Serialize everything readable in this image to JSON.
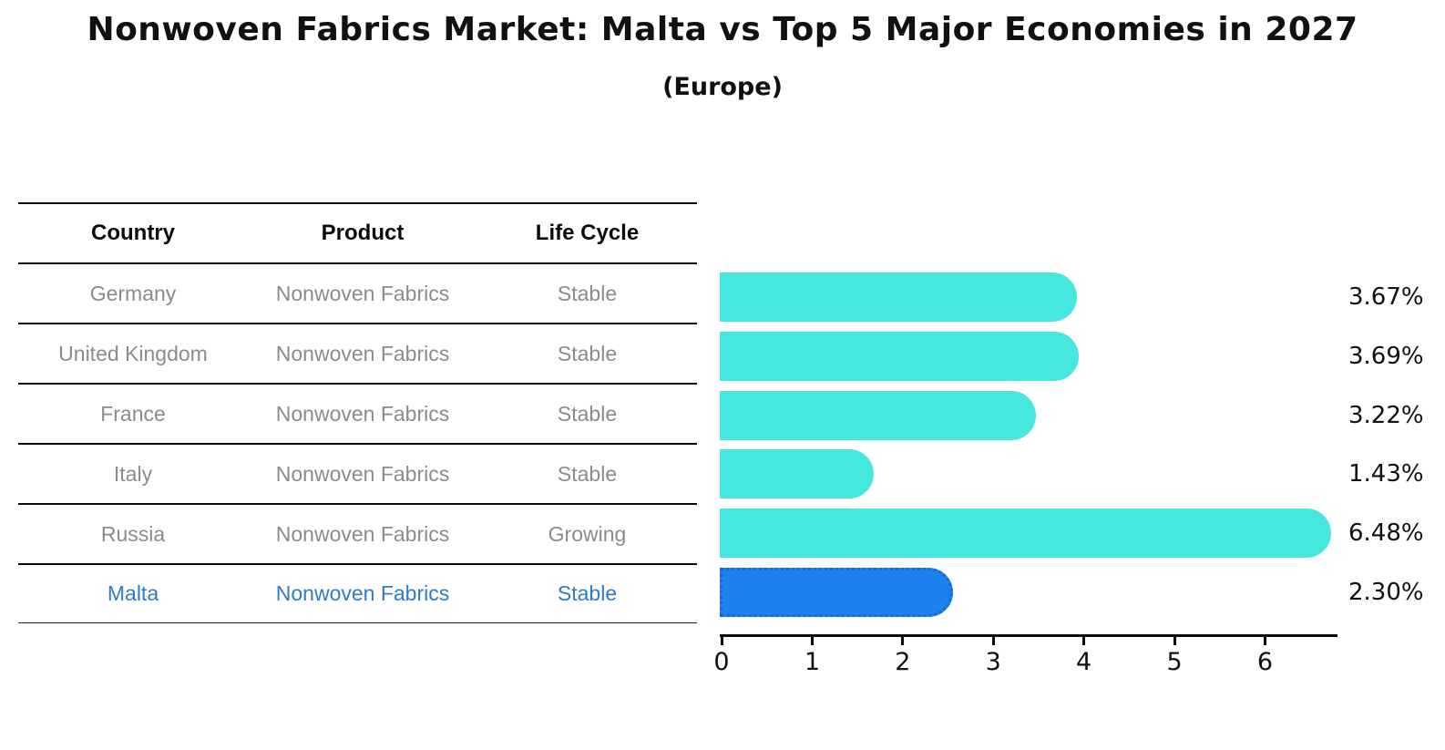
{
  "page": {
    "title": "Nonwoven Fabrics Market: Malta vs Top 5 Major Economies in 2027",
    "subtitle": "(Europe)"
  },
  "table": {
    "columns": [
      "Country",
      "Product",
      "Life Cycle"
    ],
    "rows": [
      {
        "country": "Germany",
        "product": "Nonwoven Fabrics",
        "life_cycle": "Stable"
      },
      {
        "country": "United Kingdom",
        "product": "Nonwoven Fabrics",
        "life_cycle": "Stable"
      },
      {
        "country": "France",
        "product": "Nonwoven Fabrics",
        "life_cycle": "Stable"
      },
      {
        "country": "Italy",
        "product": "Nonwoven Fabrics",
        "life_cycle": "Stable"
      },
      {
        "country": "Russia",
        "product": "Nonwoven Fabrics",
        "life_cycle": "Growing"
      },
      {
        "country": "Malta",
        "product": "Nonwoven Fabrics",
        "life_cycle": "Stable"
      }
    ],
    "highlight_row": "Malta"
  },
  "chart_data": {
    "type": "bar",
    "orientation": "horizontal",
    "title": "Nonwoven Fabrics Market: Malta vs Top 5 Major Economies in 2027 (Europe)",
    "categories": [
      "Germany",
      "United Kingdom",
      "France",
      "Italy",
      "Russia",
      "Malta"
    ],
    "values": [
      3.67,
      3.69,
      3.22,
      1.43,
      6.48,
      2.3
    ],
    "value_labels": [
      "3.67%",
      "3.69%",
      "3.22%",
      "1.43%",
      "6.48%",
      "2.30%"
    ],
    "x_ticks": [
      "0",
      "1",
      "2",
      "3",
      "4",
      "5",
      "6"
    ],
    "xlim": [
      0,
      6.8
    ],
    "xlabel": "",
    "ylabel": "",
    "grid": false,
    "legend": false,
    "highlight_index": 5
  },
  "colors": {
    "bar_color": "#47E7DF",
    "highlight_color": "#1E81F0",
    "highlight_border_color": "#1668D9",
    "highlight_text_color": "#2D7BCD",
    "muted_text_color": "#8B8B8B",
    "text_color": "#111111",
    "background": "#FFFFFF"
  }
}
